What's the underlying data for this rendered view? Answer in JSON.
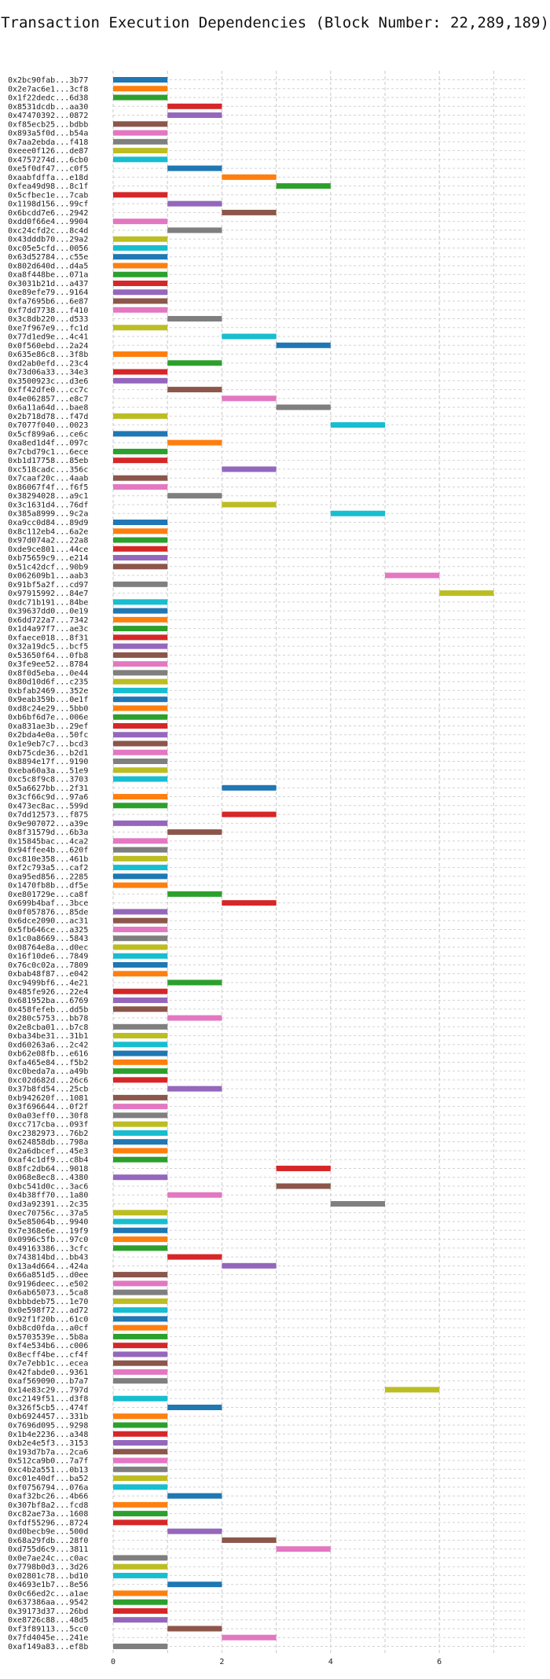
{
  "chart_data": {
    "type": "bar",
    "orientation": "horizontal-range",
    "title": "Transaction Execution Dependencies (Block Number: 22,289,189)",
    "xlabel": "",
    "ylabel": "",
    "xlim": [
      0,
      7.5
    ],
    "xticks": [
      0,
      2,
      4,
      6
    ],
    "grid": true,
    "palette": [
      "#1f77b4",
      "#ff7f0e",
      "#2ca02c",
      "#d62728",
      "#9467bd",
      "#8c564b",
      "#e377c2",
      "#7f7f7f",
      "#bcbd22",
      "#17becf"
    ],
    "transactions": [
      {
        "label": "0x2bc90fab...3b77",
        "start": 0,
        "end": 1
      },
      {
        "label": "0x2e7ac6e1...3cf8",
        "start": 0,
        "end": 1
      },
      {
        "label": "0x1f22dedc...6d38",
        "start": 0,
        "end": 1
      },
      {
        "label": "0x8531dcdb...aa30",
        "start": 1,
        "end": 2
      },
      {
        "label": "0x47470392...0872",
        "start": 1,
        "end": 2
      },
      {
        "label": "0xf85ecb25...bdbb",
        "start": 0,
        "end": 1
      },
      {
        "label": "0x893a5f0d...b54a",
        "start": 0,
        "end": 1
      },
      {
        "label": "0x7aa2ebda...f418",
        "start": 0,
        "end": 1
      },
      {
        "label": "0xeee0f126...de87",
        "start": 0,
        "end": 1
      },
      {
        "label": "0x4757274d...6cb0",
        "start": 0,
        "end": 1
      },
      {
        "label": "0xe5f0df47...c0f5",
        "start": 1,
        "end": 2
      },
      {
        "label": "0xaabfdffa...e18d",
        "start": 2,
        "end": 3
      },
      {
        "label": "0xfea49d98...8c1f",
        "start": 3,
        "end": 4
      },
      {
        "label": "0x5cfbec1e...7cab",
        "start": 0,
        "end": 1
      },
      {
        "label": "0x1198d156...99cf",
        "start": 1,
        "end": 2
      },
      {
        "label": "0x6bcdd7e6...2942",
        "start": 2,
        "end": 3
      },
      {
        "label": "0xdd0f66e4...9904",
        "start": 0,
        "end": 1
      },
      {
        "label": "0xc24cfd2c...8c4d",
        "start": 1,
        "end": 2
      },
      {
        "label": "0x43dddb70...29a2",
        "start": 0,
        "end": 1
      },
      {
        "label": "0xc05e5cfd...0056",
        "start": 0,
        "end": 1
      },
      {
        "label": "0x63d52784...c55e",
        "start": 0,
        "end": 1
      },
      {
        "label": "0x802d640d...d4a5",
        "start": 0,
        "end": 1
      },
      {
        "label": "0xa8f448be...071a",
        "start": 0,
        "end": 1
      },
      {
        "label": "0x3031b21d...a437",
        "start": 0,
        "end": 1
      },
      {
        "label": "0xe89efe79...9164",
        "start": 0,
        "end": 1
      },
      {
        "label": "0xfa7695b6...6e87",
        "start": 0,
        "end": 1
      },
      {
        "label": "0xf7dd7738...f410",
        "start": 0,
        "end": 1
      },
      {
        "label": "0x3c8db220...d533",
        "start": 1,
        "end": 2
      },
      {
        "label": "0xe7f967e9...fc1d",
        "start": 0,
        "end": 1
      },
      {
        "label": "0x77d1ed9e...4c41",
        "start": 2,
        "end": 3
      },
      {
        "label": "0x0f560ebd...2a24",
        "start": 3,
        "end": 4
      },
      {
        "label": "0x635e86c8...3f8b",
        "start": 0,
        "end": 1
      },
      {
        "label": "0xd2ab0efd...23c4",
        "start": 1,
        "end": 2
      },
      {
        "label": "0x73d06a33...34e3",
        "start": 0,
        "end": 1
      },
      {
        "label": "0x3500923c...d3e6",
        "start": 0,
        "end": 1
      },
      {
        "label": "0xff42dfe0...cc7c",
        "start": 1,
        "end": 2
      },
      {
        "label": "0x4e062857...e8c7",
        "start": 2,
        "end": 3
      },
      {
        "label": "0x6a11a64d...bae8",
        "start": 3,
        "end": 4
      },
      {
        "label": "0x2b718d78...f47d",
        "start": 0,
        "end": 1
      },
      {
        "label": "0x7077f040...0023",
        "start": 4,
        "end": 5
      },
      {
        "label": "0x5cf899a6...ce6c",
        "start": 0,
        "end": 1
      },
      {
        "label": "0xa8ed1d4f...097c",
        "start": 1,
        "end": 2
      },
      {
        "label": "0x7cbd79c1...6ece",
        "start": 0,
        "end": 1
      },
      {
        "label": "0xb1d17758...85eb",
        "start": 0,
        "end": 1
      },
      {
        "label": "0xc518cadc...356c",
        "start": 2,
        "end": 3
      },
      {
        "label": "0x7caaf20c...4aab",
        "start": 0,
        "end": 1
      },
      {
        "label": "0x86067f4f...f6f5",
        "start": 0,
        "end": 1
      },
      {
        "label": "0x38294028...a9c1",
        "start": 1,
        "end": 2
      },
      {
        "label": "0x3c1631d4...76df",
        "start": 2,
        "end": 3
      },
      {
        "label": "0x385a8999...9c2a",
        "start": 4,
        "end": 5
      },
      {
        "label": "0xa9cc0d84...89d9",
        "start": 0,
        "end": 1
      },
      {
        "label": "0x8c112eb4...6a2e",
        "start": 0,
        "end": 1
      },
      {
        "label": "0x97d074a2...22a8",
        "start": 0,
        "end": 1
      },
      {
        "label": "0xde9ce801...44ce",
        "start": 0,
        "end": 1
      },
      {
        "label": "0xb75659c9...e214",
        "start": 0,
        "end": 1
      },
      {
        "label": "0x51c42dcf...90b9",
        "start": 0,
        "end": 1
      },
      {
        "label": "0x062609b1...aab3",
        "start": 5,
        "end": 6
      },
      {
        "label": "0x91bf5a2f...cd97",
        "start": 0,
        "end": 1
      },
      {
        "label": "0x97915992...84e7",
        "start": 6,
        "end": 7
      },
      {
        "label": "0xdc71b191...84be",
        "start": 0,
        "end": 1
      },
      {
        "label": "0x39637dd0...0e19",
        "start": 0,
        "end": 1
      },
      {
        "label": "0x6dd722a7...7342",
        "start": 0,
        "end": 1
      },
      {
        "label": "0x1d4a97f7...ae3c",
        "start": 0,
        "end": 1
      },
      {
        "label": "0xfaece018...8f31",
        "start": 0,
        "end": 1
      },
      {
        "label": "0x32a19dc5...bcf5",
        "start": 0,
        "end": 1
      },
      {
        "label": "0x53650f64...0fb8",
        "start": 0,
        "end": 1
      },
      {
        "label": "0x3fe9ee52...8784",
        "start": 0,
        "end": 1
      },
      {
        "label": "0x8f0d5eba...0e44",
        "start": 0,
        "end": 1
      },
      {
        "label": "0x80d10d6f...c235",
        "start": 0,
        "end": 1
      },
      {
        "label": "0xbfab2469...352e",
        "start": 0,
        "end": 1
      },
      {
        "label": "0x9eab359b...0e1f",
        "start": 0,
        "end": 1
      },
      {
        "label": "0xd8c24e29...5bb0",
        "start": 0,
        "end": 1
      },
      {
        "label": "0xb6bf6d7e...006e",
        "start": 0,
        "end": 1
      },
      {
        "label": "0xa831ae3b...29ef",
        "start": 0,
        "end": 1
      },
      {
        "label": "0x2bda4e0a...50fc",
        "start": 0,
        "end": 1
      },
      {
        "label": "0x1e9eb7c7...bcd3",
        "start": 0,
        "end": 1
      },
      {
        "label": "0xb75cde36...b2d1",
        "start": 0,
        "end": 1
      },
      {
        "label": "0x8894e17f...9190",
        "start": 0,
        "end": 1
      },
      {
        "label": "0xeba60a3a...51e9",
        "start": 0,
        "end": 1
      },
      {
        "label": "0xc5c8f9c8...3703",
        "start": 0,
        "end": 1
      },
      {
        "label": "0x5a6627bb...2f31",
        "start": 2,
        "end": 3
      },
      {
        "label": "0x3cf66c9d...97a6",
        "start": 0,
        "end": 1
      },
      {
        "label": "0x473ec8ac...599d",
        "start": 0,
        "end": 1
      },
      {
        "label": "0x7dd12573...f875",
        "start": 2,
        "end": 3
      },
      {
        "label": "0x9e907072...a39e",
        "start": 0,
        "end": 1
      },
      {
        "label": "0x8f31579d...6b3a",
        "start": 1,
        "end": 2
      },
      {
        "label": "0x15845bac...4ca2",
        "start": 0,
        "end": 1
      },
      {
        "label": "0x94ffee4b...620f",
        "start": 0,
        "end": 1
      },
      {
        "label": "0xc810e358...461b",
        "start": 0,
        "end": 1
      },
      {
        "label": "0xf2c793a5...caf2",
        "start": 0,
        "end": 1
      },
      {
        "label": "0xa95ed856...2285",
        "start": 0,
        "end": 1
      },
      {
        "label": "0x1470fb8b...df5e",
        "start": 0,
        "end": 1
      },
      {
        "label": "0xe801729e...ca8f",
        "start": 1,
        "end": 2
      },
      {
        "label": "0x699b4baf...3bce",
        "start": 2,
        "end": 3
      },
      {
        "label": "0x0f057876...85de",
        "start": 0,
        "end": 1
      },
      {
        "label": "0x6dce2090...ac31",
        "start": 0,
        "end": 1
      },
      {
        "label": "0x5fb646ce...a325",
        "start": 0,
        "end": 1
      },
      {
        "label": "0x1c0a8669...5843",
        "start": 0,
        "end": 1
      },
      {
        "label": "0x08764e8a...d0ec",
        "start": 0,
        "end": 1
      },
      {
        "label": "0x16f10de6...7849",
        "start": 0,
        "end": 1
      },
      {
        "label": "0x76c0c02a...7809",
        "start": 0,
        "end": 1
      },
      {
        "label": "0xbab48f87...e042",
        "start": 0,
        "end": 1
      },
      {
        "label": "0xc9499bf6...4e21",
        "start": 1,
        "end": 2
      },
      {
        "label": "0x485fe926...22e4",
        "start": 0,
        "end": 1
      },
      {
        "label": "0x681952ba...6769",
        "start": 0,
        "end": 1
      },
      {
        "label": "0x458fefeb...dd5b",
        "start": 0,
        "end": 1
      },
      {
        "label": "0x280c5753...bb78",
        "start": 1,
        "end": 2
      },
      {
        "label": "0x2e8cba01...b7c8",
        "start": 0,
        "end": 1
      },
      {
        "label": "0xba34be31...31b1",
        "start": 0,
        "end": 1
      },
      {
        "label": "0xd60263a6...2c42",
        "start": 0,
        "end": 1
      },
      {
        "label": "0xb62e08fb...e616",
        "start": 0,
        "end": 1
      },
      {
        "label": "0xfa465e84...f5b2",
        "start": 0,
        "end": 1
      },
      {
        "label": "0xc0beda7a...a49b",
        "start": 0,
        "end": 1
      },
      {
        "label": "0xc02d682d...26c6",
        "start": 0,
        "end": 1
      },
      {
        "label": "0x37b8fd54...25cb",
        "start": 1,
        "end": 2
      },
      {
        "label": "0xb942620f...1081",
        "start": 0,
        "end": 1
      },
      {
        "label": "0x3f696644...0f2f",
        "start": 0,
        "end": 1
      },
      {
        "label": "0x0a03eff0...30f8",
        "start": 0,
        "end": 1
      },
      {
        "label": "0xcc717cba...093f",
        "start": 0,
        "end": 1
      },
      {
        "label": "0xc2382973...76b2",
        "start": 0,
        "end": 1
      },
      {
        "label": "0x624858db...798a",
        "start": 0,
        "end": 1
      },
      {
        "label": "0x2a6dbcef...45e3",
        "start": 0,
        "end": 1
      },
      {
        "label": "0xaf4c1df9...c8b4",
        "start": 0,
        "end": 1
      },
      {
        "label": "0x8fc2db64...9018",
        "start": 3,
        "end": 4
      },
      {
        "label": "0x068e8ec8...4380",
        "start": 0,
        "end": 1
      },
      {
        "label": "0xbc541d0c...3ac6",
        "start": 3,
        "end": 4
      },
      {
        "label": "0x4b38ff70...1a80",
        "start": 1,
        "end": 2
      },
      {
        "label": "0xd3a92391...2c35",
        "start": 4,
        "end": 5
      },
      {
        "label": "0xec70756c...37a5",
        "start": 0,
        "end": 1
      },
      {
        "label": "0x5e85064b...9940",
        "start": 0,
        "end": 1
      },
      {
        "label": "0x7e368e6e...19f9",
        "start": 0,
        "end": 1
      },
      {
        "label": "0x0996c5fb...97c0",
        "start": 0,
        "end": 1
      },
      {
        "label": "0x49163386...3cfc",
        "start": 0,
        "end": 1
      },
      {
        "label": "0x743814bd...bb43",
        "start": 1,
        "end": 2
      },
      {
        "label": "0x13a4d664...424a",
        "start": 2,
        "end": 3
      },
      {
        "label": "0x66a851d5...d0ee",
        "start": 0,
        "end": 1
      },
      {
        "label": "0x9196deec...e502",
        "start": 0,
        "end": 1
      },
      {
        "label": "0x6ab65073...5ca8",
        "start": 0,
        "end": 1
      },
      {
        "label": "0xbbbdeb75...1e70",
        "start": 0,
        "end": 1
      },
      {
        "label": "0x0e598f72...ad72",
        "start": 0,
        "end": 1
      },
      {
        "label": "0x92f1f20b...61c0",
        "start": 0,
        "end": 1
      },
      {
        "label": "0xb8cd0fda...a0cf",
        "start": 0,
        "end": 1
      },
      {
        "label": "0x5703539e...5b8a",
        "start": 0,
        "end": 1
      },
      {
        "label": "0xf4e534b6...c006",
        "start": 0,
        "end": 1
      },
      {
        "label": "0x8ecff4be...cf4f",
        "start": 0,
        "end": 1
      },
      {
        "label": "0x7e7ebb1c...ecea",
        "start": 0,
        "end": 1
      },
      {
        "label": "0x42fabde0...9361",
        "start": 0,
        "end": 1
      },
      {
        "label": "0xaf569090...b7a7",
        "start": 0,
        "end": 1
      },
      {
        "label": "0x14e83c29...797d",
        "start": 5,
        "end": 6
      },
      {
        "label": "0xc2149f51...d3f8",
        "start": 0,
        "end": 1
      },
      {
        "label": "0x326f5cb5...474f",
        "start": 1,
        "end": 2
      },
      {
        "label": "0xb6924457...331b",
        "start": 0,
        "end": 1
      },
      {
        "label": "0x7696d095...9298",
        "start": 0,
        "end": 1
      },
      {
        "label": "0x1b4e2236...a348",
        "start": 0,
        "end": 1
      },
      {
        "label": "0xb2e4e5f3...3153",
        "start": 0,
        "end": 1
      },
      {
        "label": "0x193d7b7a...2ca6",
        "start": 0,
        "end": 1
      },
      {
        "label": "0x512ca9b0...7a7f",
        "start": 0,
        "end": 1
      },
      {
        "label": "0xc4b2a551...0b13",
        "start": 0,
        "end": 1
      },
      {
        "label": "0xc01e40df...ba52",
        "start": 0,
        "end": 1
      },
      {
        "label": "0xf0756794...076a",
        "start": 0,
        "end": 1
      },
      {
        "label": "0xaf32bc26...4b66",
        "start": 1,
        "end": 2
      },
      {
        "label": "0x307bf8a2...fcd8",
        "start": 0,
        "end": 1
      },
      {
        "label": "0xc82ae73a...1608",
        "start": 0,
        "end": 1
      },
      {
        "label": "0xfdf55296...8724",
        "start": 0,
        "end": 1
      },
      {
        "label": "0xd0becb9e...500d",
        "start": 1,
        "end": 2
      },
      {
        "label": "0x68a29fdb...28f0",
        "start": 2,
        "end": 3
      },
      {
        "label": "0xd755d6c9...3811",
        "start": 3,
        "end": 4
      },
      {
        "label": "0x0e7ae24c...c0ac",
        "start": 0,
        "end": 1
      },
      {
        "label": "0x7798b0d3...3d26",
        "start": 0,
        "end": 1
      },
      {
        "label": "0x02801c78...bd10",
        "start": 0,
        "end": 1
      },
      {
        "label": "0x4693e1b7...8e56",
        "start": 1,
        "end": 2
      },
      {
        "label": "0x0c66ed2c...a1ae",
        "start": 0,
        "end": 1
      },
      {
        "label": "0x637386aa...9542",
        "start": 0,
        "end": 1
      },
      {
        "label": "0x39173d37...26bd",
        "start": 0,
        "end": 1
      },
      {
        "label": "0xe8726c88...48d5",
        "start": 0,
        "end": 1
      },
      {
        "label": "0xf3f89113...5cc0",
        "start": 1,
        "end": 2
      },
      {
        "label": "0x7fd4045e...241e",
        "start": 2,
        "end": 3
      },
      {
        "label": "0xaf149a83...ef8b",
        "start": 0,
        "end": 1
      }
    ]
  }
}
